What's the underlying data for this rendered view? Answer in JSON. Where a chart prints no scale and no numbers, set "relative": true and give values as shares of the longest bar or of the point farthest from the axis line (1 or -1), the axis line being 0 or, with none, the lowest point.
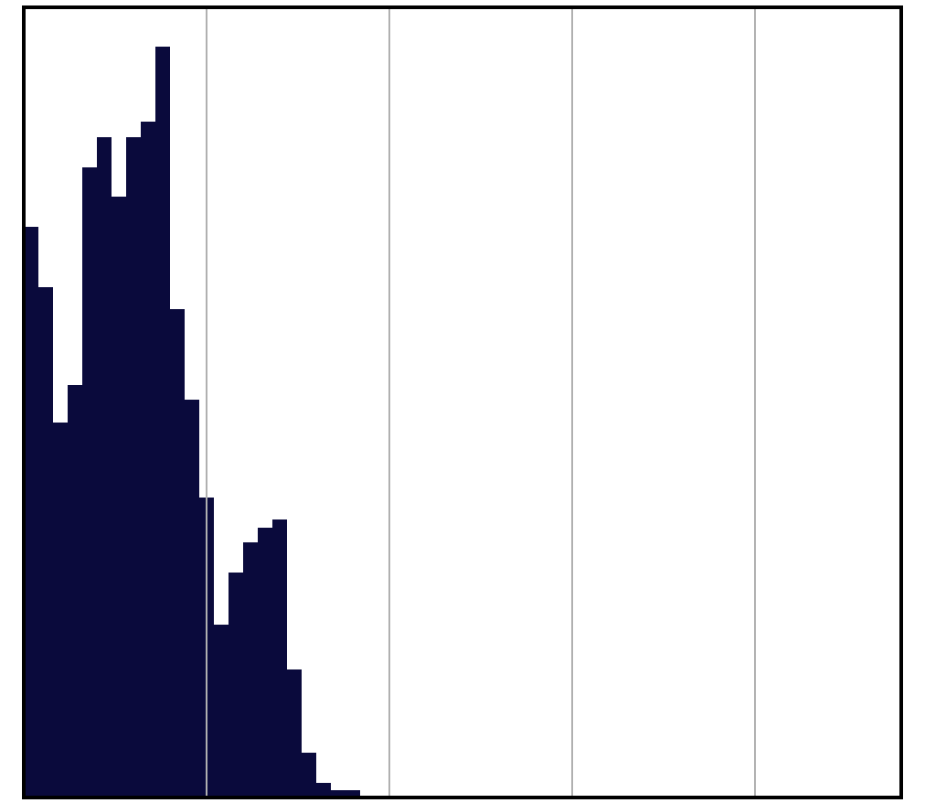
{
  "chart_data": {
    "type": "bar",
    "relative": true,
    "categories": [
      null,
      null,
      null,
      null,
      null,
      null,
      null,
      null,
      null,
      null,
      null,
      null,
      null,
      null,
      null,
      null,
      null,
      null,
      null,
      null,
      null,
      null,
      null
    ],
    "values": [
      0.76,
      0.68,
      0.5,
      0.55,
      0.84,
      0.88,
      0.8,
      0.88,
      0.9,
      1,
      0.65,
      0.53,
      0.4,
      0.23,
      0.3,
      0.34,
      0.36,
      0.37,
      0.17,
      0.06,
      0.02,
      0.01,
      0.01
    ],
    "color": "#0a0a3c",
    "legend": false
  }
}
